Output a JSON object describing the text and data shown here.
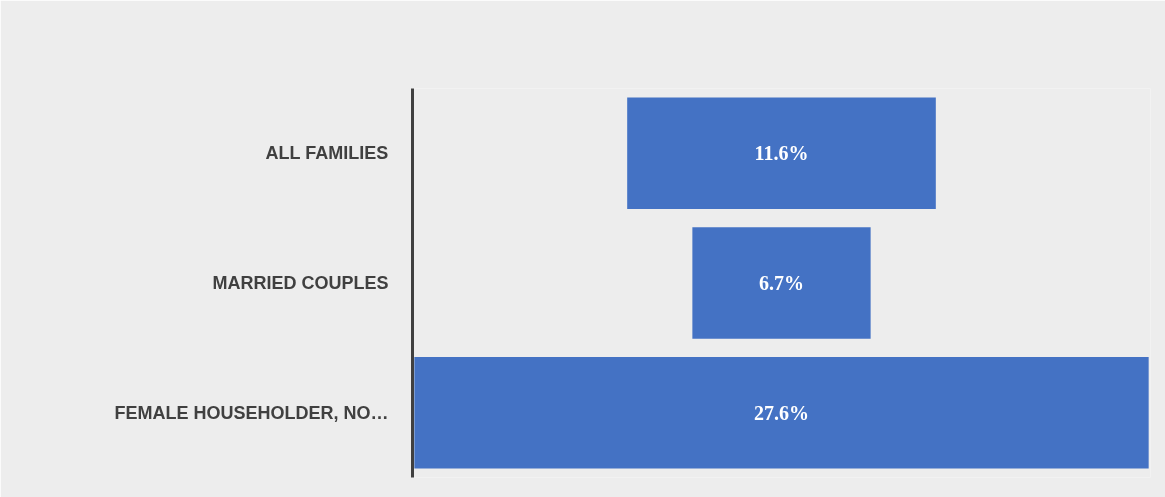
{
  "chart_data": {
    "type": "other",
    "categories": [
      "ALL FAMILIES",
      "MARRIED COUPLES",
      "FEMALE HOUSEHOLDER, NO…"
    ],
    "values": [
      11.6,
      6.7,
      27.6
    ],
    "value_labels": [
      "11.6%",
      "6.7%",
      "27.6%"
    ],
    "color": "#4472c4"
  }
}
